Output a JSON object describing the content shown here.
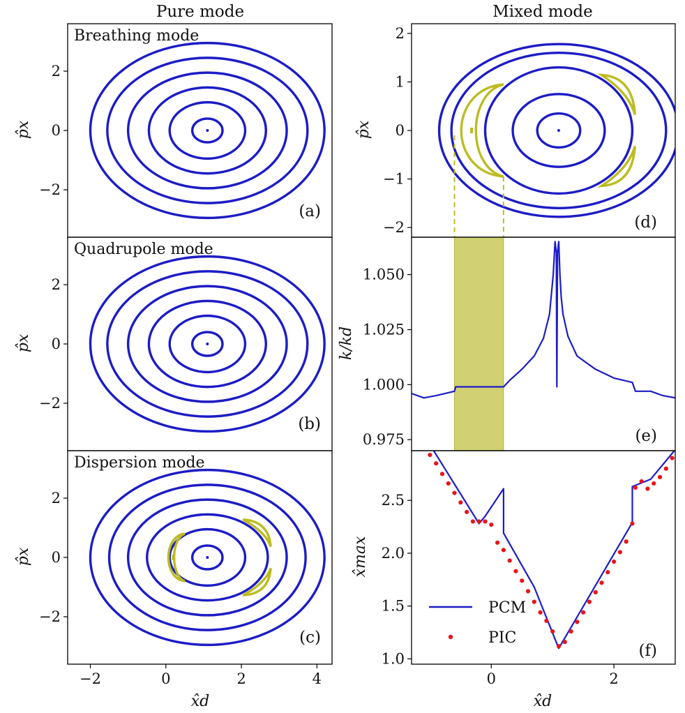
{
  "figure": {
    "col_titles": [
      "Pure mode",
      "Mixed mode"
    ],
    "panels": {
      "a": {
        "label": "(a)",
        "mode": "Breathing mode"
      },
      "b": {
        "label": "(b)",
        "mode": "Quadrupole mode"
      },
      "c": {
        "label": "(c)",
        "mode": "Dispersion mode"
      },
      "d": {
        "label": "(d)"
      },
      "e": {
        "label": "(e)"
      },
      "f": {
        "label": "(f)"
      }
    },
    "axis_labels": {
      "px": "p̂x",
      "xd": "x̂d",
      "kkd": "k/kd",
      "xmax": "x̂max"
    },
    "colors": {
      "orbit": "#1c1cc6",
      "island": "#bcbc22",
      "pic": "#e8141a",
      "band": "#c9c85a"
    }
  },
  "chart_data": [
    {
      "id": "a",
      "type": "scatter",
      "title": "Breathing mode",
      "xlabel": "x̂d",
      "ylabel": "p̂x",
      "xlim": [
        -2.6,
        4.4
      ],
      "ylim": [
        -3.6,
        3.6
      ],
      "yticks": [
        -2,
        0,
        2
      ],
      "orbits": {
        "center": [
          1.1,
          0
        ],
        "rx": [
          0.4,
          1.0,
          1.55,
          2.1,
          2.65,
          3.1
        ],
        "ry": [
          0.4,
          0.95,
          1.45,
          1.95,
          2.45,
          2.95
        ]
      }
    },
    {
      "id": "b",
      "type": "scatter",
      "title": "Quadrupole mode",
      "xlabel": "x̂d",
      "ylabel": "p̂x",
      "xlim": [
        -2.6,
        4.4
      ],
      "ylim": [
        -3.6,
        3.6
      ],
      "yticks": [
        -2,
        0,
        2
      ],
      "orbits": {
        "center": [
          1.1,
          0
        ],
        "rx": [
          0.4,
          1.0,
          1.55,
          2.1,
          2.65,
          3.1
        ],
        "ry": [
          0.4,
          0.95,
          1.45,
          1.95,
          2.45,
          2.95
        ]
      }
    },
    {
      "id": "c",
      "type": "scatter",
      "title": "Dispersion mode",
      "xlabel": "x̂d",
      "ylabel": "p̂x",
      "xlim": [
        -2.6,
        4.4
      ],
      "ylim": [
        -3.6,
        3.6
      ],
      "xticks": [
        -2,
        0,
        2,
        4
      ],
      "yticks": [
        -2,
        0,
        2
      ],
      "orbits": {
        "center": [
          1.1,
          0
        ],
        "rx": [
          0.4,
          1.0,
          1.6,
          2.1,
          2.6,
          3.1
        ],
        "ry": [
          0.4,
          0.95,
          1.45,
          1.95,
          2.45,
          2.95
        ]
      },
      "island": {
        "x": [
          0.0,
          0.5
        ],
        "y": [
          -0.8,
          0.8
        ]
      }
    },
    {
      "id": "d",
      "type": "scatter",
      "title": "",
      "xlabel": "",
      "ylabel": "p̂x",
      "xlim": [
        -1.3,
        3.0
      ],
      "ylim": [
        -2.2,
        2.2
      ],
      "yticks": [
        -2,
        -1,
        0,
        1,
        2
      ],
      "orbits": {
        "center": [
          1.1,
          0
        ],
        "rx": [
          0.35,
          0.75,
          1.2,
          1.75,
          1.95
        ],
        "ry": [
          0.35,
          0.75,
          1.3,
          1.6,
          1.78
        ]
      },
      "island": {
        "x": [
          -0.6,
          0.2
        ],
        "y": [
          -0.95,
          0.95
        ]
      }
    },
    {
      "id": "e",
      "type": "line",
      "title": "",
      "xlabel": "",
      "ylabel": "k/kd",
      "xlim": [
        -1.3,
        3.0
      ],
      "ylim": [
        0.97,
        1.067
      ],
      "yticks": [
        0.975,
        1.0,
        1.025,
        1.05
      ],
      "band": [
        -0.6,
        0.2
      ],
      "series": [
        {
          "name": "k/kd",
          "x": [
            -1.3,
            -1.1,
            -0.9,
            -0.6,
            -0.58,
            0.0,
            0.2,
            0.3,
            0.5,
            0.7,
            0.85,
            0.95,
            1.01,
            1.04,
            1.06,
            1.07,
            1.08,
            1.1,
            1.12,
            1.14,
            1.17,
            1.25,
            1.4,
            1.7,
            2.0,
            2.3,
            2.35,
            2.6,
            2.8,
            3.0
          ],
          "y": [
            0.996,
            0.994,
            0.995,
            0.997,
            0.999,
            0.999,
            0.999,
            1.002,
            1.007,
            1.013,
            1.021,
            1.032,
            1.05,
            1.065,
            1.06,
            0.999,
            1.06,
            1.065,
            1.05,
            1.04,
            1.032,
            1.022,
            1.013,
            1.007,
            1.003,
            1.001,
            0.997,
            0.997,
            0.995,
            0.994
          ]
        }
      ]
    },
    {
      "id": "f",
      "type": "line",
      "title": "",
      "xlabel": "x̂d",
      "ylabel": "x̂max",
      "xlim": [
        -1.3,
        3.0
      ],
      "ylim": [
        0.95,
        2.97
      ],
      "xticks": [
        0,
        2
      ],
      "yticks": [
        1.0,
        1.5,
        2.0,
        2.5
      ],
      "legend": {
        "location": "lower-left",
        "entries": [
          "PCM",
          "PIC"
        ]
      },
      "series": [
        {
          "name": "PCM",
          "type": "line",
          "x": [
            -0.95,
            -0.2,
            -0.1,
            0.2,
            0.2,
            0.7,
            1.1,
            2.3,
            2.3,
            2.6,
            3.0
          ],
          "y": [
            2.98,
            2.28,
            2.35,
            2.61,
            2.19,
            1.68,
            1.1,
            2.29,
            2.63,
            2.7,
            2.98
          ]
        },
        {
          "name": "PIC",
          "type": "scatter",
          "x": [
            -1.0,
            -0.9,
            -0.8,
            -0.7,
            -0.6,
            -0.5,
            -0.4,
            -0.3,
            -0.2,
            -0.1,
            0.0,
            0.1,
            0.2,
            0.3,
            0.4,
            0.5,
            0.6,
            0.7,
            0.8,
            0.9,
            1.0,
            1.1,
            1.2,
            1.3,
            1.4,
            1.5,
            1.6,
            1.7,
            1.8,
            1.9,
            2.0,
            2.1,
            2.2,
            2.3,
            2.35,
            2.45,
            2.55,
            2.65,
            2.75,
            2.85,
            2.95
          ],
          "y": [
            2.93,
            2.85,
            2.75,
            2.66,
            2.57,
            2.48,
            2.39,
            2.3,
            2.3,
            2.3,
            2.27,
            2.1,
            2.03,
            1.93,
            1.83,
            1.74,
            1.64,
            1.54,
            1.44,
            1.36,
            1.26,
            1.12,
            1.16,
            1.26,
            1.35,
            1.44,
            1.54,
            1.63,
            1.72,
            1.82,
            1.92,
            2.01,
            2.11,
            2.28,
            2.62,
            2.68,
            2.61,
            2.66,
            2.72,
            2.8,
            2.9
          ]
        }
      ]
    }
  ]
}
